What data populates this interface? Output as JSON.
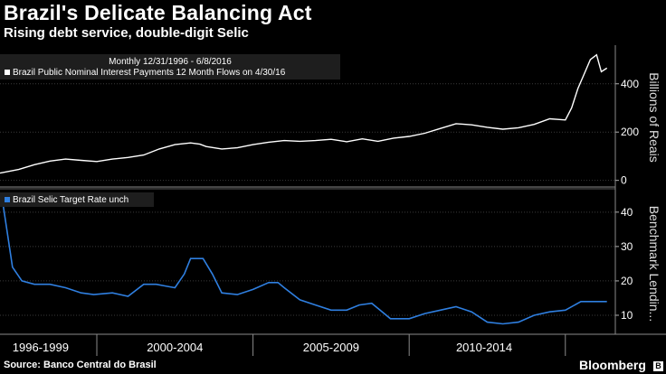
{
  "header": {
    "title": "Brazil's Delicate Balancing Act",
    "subtitle": "Rising debt service, double-digit Selic"
  },
  "footer": {
    "source": "Source: Banco Central do Brasil",
    "brand": "Bloomberg",
    "brand_badge": "B"
  },
  "colors": {
    "background": "#000000",
    "top_series": "#ffffff",
    "bottom_series": "#2f7fe0",
    "grid": "#3a3a3a",
    "axis": "#b0b0b0"
  },
  "chart_data": [
    {
      "type": "line",
      "panel": "top",
      "info_label": "Monthly 12/31/1996 - 6/8/2016",
      "legend": "Brazil Public Nominal Interest Payments 12 Month Flows  on 4/30/16",
      "ylabel": "Billions of Reais",
      "ylim": [
        -20,
        560
      ],
      "yticks": [
        0,
        200,
        400
      ],
      "x": [
        1996.9,
        1997.5,
        1998.0,
        1998.5,
        1999.0,
        1999.5,
        2000.0,
        2000.5,
        2001.0,
        2001.5,
        2002.0,
        2002.5,
        2003.0,
        2003.3,
        2003.5,
        2004.0,
        2004.5,
        2005.0,
        2005.5,
        2006.0,
        2006.5,
        2007.0,
        2007.5,
        2008.0,
        2008.5,
        2009.0,
        2009.5,
        2010.0,
        2010.5,
        2011.0,
        2011.5,
        2012.0,
        2012.5,
        2013.0,
        2013.5,
        2014.0,
        2014.5,
        2015.0,
        2015.2,
        2015.4,
        2015.6,
        2015.8,
        2016.0,
        2016.15,
        2016.33
      ],
      "series": [
        {
          "name": "Brazil Public Nominal Interest Payments 12 Month Flows",
          "values": [
            30,
            45,
            65,
            80,
            88,
            83,
            78,
            88,
            95,
            105,
            130,
            148,
            155,
            150,
            140,
            130,
            135,
            148,
            158,
            165,
            162,
            165,
            170,
            160,
            172,
            162,
            175,
            182,
            195,
            215,
            235,
            230,
            220,
            212,
            218,
            232,
            255,
            250,
            300,
            380,
            440,
            500,
            520,
            450,
            465
          ]
        }
      ]
    },
    {
      "type": "line",
      "panel": "bottom",
      "legend": "Brazil Selic Target Rate  unch",
      "ylabel": "Benchmark Lendin...",
      "ylim": [
        5,
        46
      ],
      "yticks": [
        10,
        20,
        30,
        40
      ],
      "x": [
        1996.9,
        1997.0,
        1997.3,
        1997.6,
        1998.0,
        1998.5,
        1999.0,
        1999.5,
        1999.9,
        2000.5,
        2001.0,
        2001.5,
        2001.9,
        2002.2,
        2002.5,
        2002.8,
        2003.0,
        2003.4,
        2003.7,
        2004.0,
        2004.5,
        2005.0,
        2005.5,
        2005.8,
        2006.0,
        2006.5,
        2007.0,
        2007.5,
        2008.0,
        2008.4,
        2008.8,
        2009.0,
        2009.4,
        2010.0,
        2010.5,
        2011.0,
        2011.5,
        2012.0,
        2012.5,
        2013.0,
        2013.5,
        2014.0,
        2014.5,
        2015.0,
        2015.5,
        2016.33
      ],
      "series": [
        {
          "name": "Brazil Selic Target Rate",
          "values": [
            44,
            42,
            24,
            20,
            19,
            19,
            18,
            16.5,
            16,
            16.5,
            15.5,
            19,
            19,
            18.5,
            18,
            22,
            26.5,
            26.5,
            22,
            16.5,
            16,
            17.5,
            19.5,
            19.5,
            18,
            14.5,
            13,
            11.5,
            11.5,
            13,
            13.5,
            12,
            9,
            9,
            10.5,
            11.5,
            12.5,
            11,
            8,
            7.5,
            8,
            10,
            11,
            11.5,
            14,
            14
          ]
        }
      ]
    }
  ],
  "x_axis": {
    "range": [
      1996.9,
      2016.6
    ],
    "period_labels": [
      {
        "label": "1996-1999",
        "center": 1998.2
      },
      {
        "label": "2000-2004",
        "center": 2002.5
      },
      {
        "label": "2005-2009",
        "center": 2007.5
      },
      {
        "label": "2010-2014",
        "center": 2012.4
      }
    ],
    "separators": [
      2000.0,
      2005.0,
      2010.0,
      2015.0
    ]
  }
}
